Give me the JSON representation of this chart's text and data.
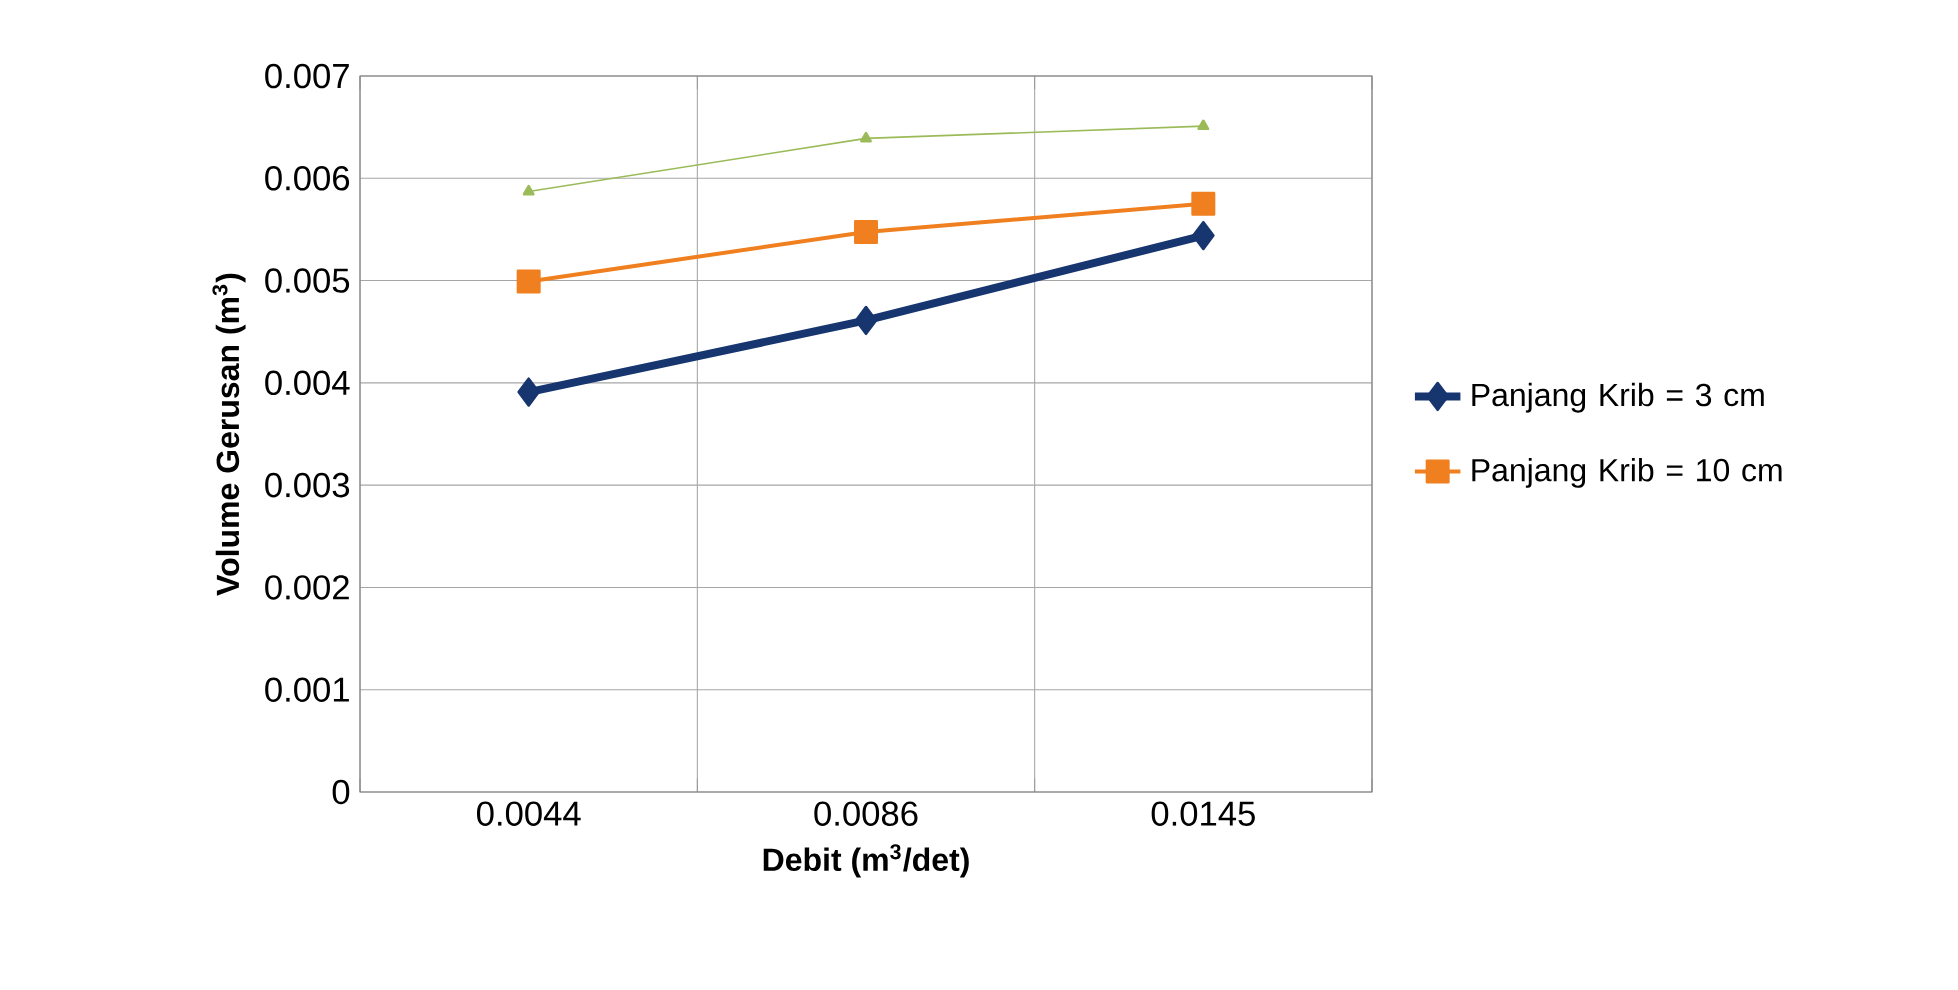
{
  "chart_data": {
    "type": "line",
    "xlabel": "Debit (m$^{3}$/det)",
    "ylabel": "Volume Gerusan (m$^{3}$)",
    "categories": [
      "0.0044",
      "0.0086",
      "0.0145"
    ],
    "series": [
      {
        "name": "Panjang Krib = 3 cm",
        "color": "#17366f",
        "marker": "diamond",
        "values": [
          0.00391,
          0.00461,
          0.00544
        ]
      },
      {
        "name": "Panjang Krib = 10 cm",
        "color": "#f07f1f",
        "marker": "square",
        "values": [
          0.00499,
          0.005475,
          0.00575
        ]
      },
      {
        "color": "#9bbb59",
        "marker": "triangle",
        "values": [
          0.00587,
          0.00639,
          0.00651
        ]
      }
    ],
    "ylim": [
      0,
      0.007
    ],
    "yticks": [
      0,
      0.001,
      0.002,
      0.003,
      0.004,
      0.005,
      0.006,
      0.007
    ],
    "grid": true,
    "legend": "right"
  }
}
